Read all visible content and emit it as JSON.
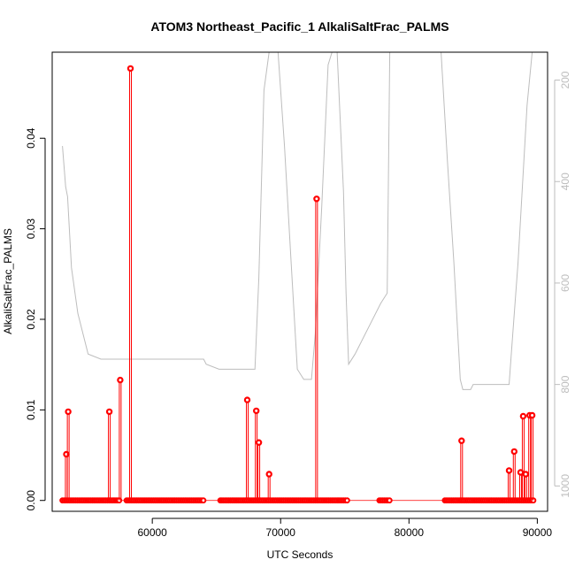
{
  "chart_data": {
    "type": "scatter",
    "title": "ATOM3 Northeast_Pacific_1 AlkaliSaltFrac_PALMS",
    "xlabel": "UTC Seconds",
    "ylabel": "AlkaliSaltFrac_PALMS",
    "xlim": [
      52200,
      90800
    ],
    "ylim": [
      -0.0012,
      0.0495
    ],
    "x_ticks": [
      60000,
      70000,
      80000,
      90000
    ],
    "y_ticks": [
      0.0,
      0.01,
      0.02,
      0.03,
      0.04
    ],
    "y_tick_labels": [
      "0.00",
      "0.01",
      "0.02",
      "0.03",
      "0.04"
    ],
    "y2lim": [
      1050,
      145
    ],
    "y2_ticks": [
      200,
      400,
      600,
      800,
      1000
    ],
    "colors": {
      "series": "#ff0000",
      "altitude": "#bdbdbd",
      "axes": "#000000"
    },
    "grid": false,
    "series": [
      {
        "values_spikes": [
          [
            53300,
            0.0051
          ],
          [
            53450,
            0.0098
          ],
          [
            56650,
            0.0098
          ],
          [
            57500,
            0.0133
          ],
          [
            58300,
            0.0477
          ],
          [
            67400,
            0.0111
          ],
          [
            68100,
            0.0099
          ],
          [
            68300,
            0.0064
          ],
          [
            69100,
            0.0029
          ],
          [
            72800,
            0.0333
          ],
          [
            84100,
            0.0066
          ],
          [
            87800,
            0.0033
          ],
          [
            88200,
            0.0054
          ],
          [
            88700,
            0.0031
          ],
          [
            88900,
            0.0093
          ],
          [
            89100,
            0.0029
          ],
          [
            89400,
            0.0094
          ],
          [
            89600,
            0.0094
          ]
        ],
        "zero_clusters": [
          [
            53000,
            57500
          ],
          [
            58000,
            64000
          ],
          [
            65300,
            75200
          ],
          [
            77700,
            78500
          ],
          [
            82800,
            89700
          ]
        ]
      },
      {
        "secondary_axis_values": [
          [
            53000,
            330
          ],
          [
            53250,
            410
          ],
          [
            53400,
            430
          ],
          [
            53700,
            570
          ],
          [
            54200,
            660
          ],
          [
            55000,
            740
          ],
          [
            56000,
            750
          ],
          [
            60000,
            750
          ],
          [
            64000,
            750
          ],
          [
            64200,
            760
          ],
          [
            65200,
            770
          ],
          [
            67000,
            770
          ],
          [
            68000,
            770
          ],
          [
            68300,
            590
          ],
          [
            68700,
            220
          ],
          [
            69100,
            145
          ],
          [
            69800,
            145
          ],
          [
            70300,
            330
          ],
          [
            70800,
            550
          ],
          [
            71300,
            770
          ],
          [
            71800,
            790
          ],
          [
            72400,
            790
          ],
          [
            72700,
            700
          ],
          [
            73200,
            450
          ],
          [
            73700,
            170
          ],
          [
            74000,
            145
          ],
          [
            74400,
            145
          ],
          [
            74900,
            420
          ],
          [
            75100,
            620
          ],
          [
            75300,
            760
          ],
          [
            75800,
            740
          ],
          [
            77000,
            680
          ],
          [
            77800,
            640
          ],
          [
            78300,
            620
          ],
          [
            78500,
            145
          ],
          [
            79000,
            145
          ],
          [
            82500,
            145
          ],
          [
            83000,
            360
          ],
          [
            83500,
            560
          ],
          [
            84000,
            790
          ],
          [
            84200,
            810
          ],
          [
            84800,
            810
          ],
          [
            85000,
            800
          ],
          [
            86000,
            800
          ],
          [
            87800,
            800
          ],
          [
            88000,
            730
          ],
          [
            88500,
            560
          ],
          [
            89200,
            250
          ],
          [
            89600,
            145
          ]
        ]
      }
    ]
  }
}
